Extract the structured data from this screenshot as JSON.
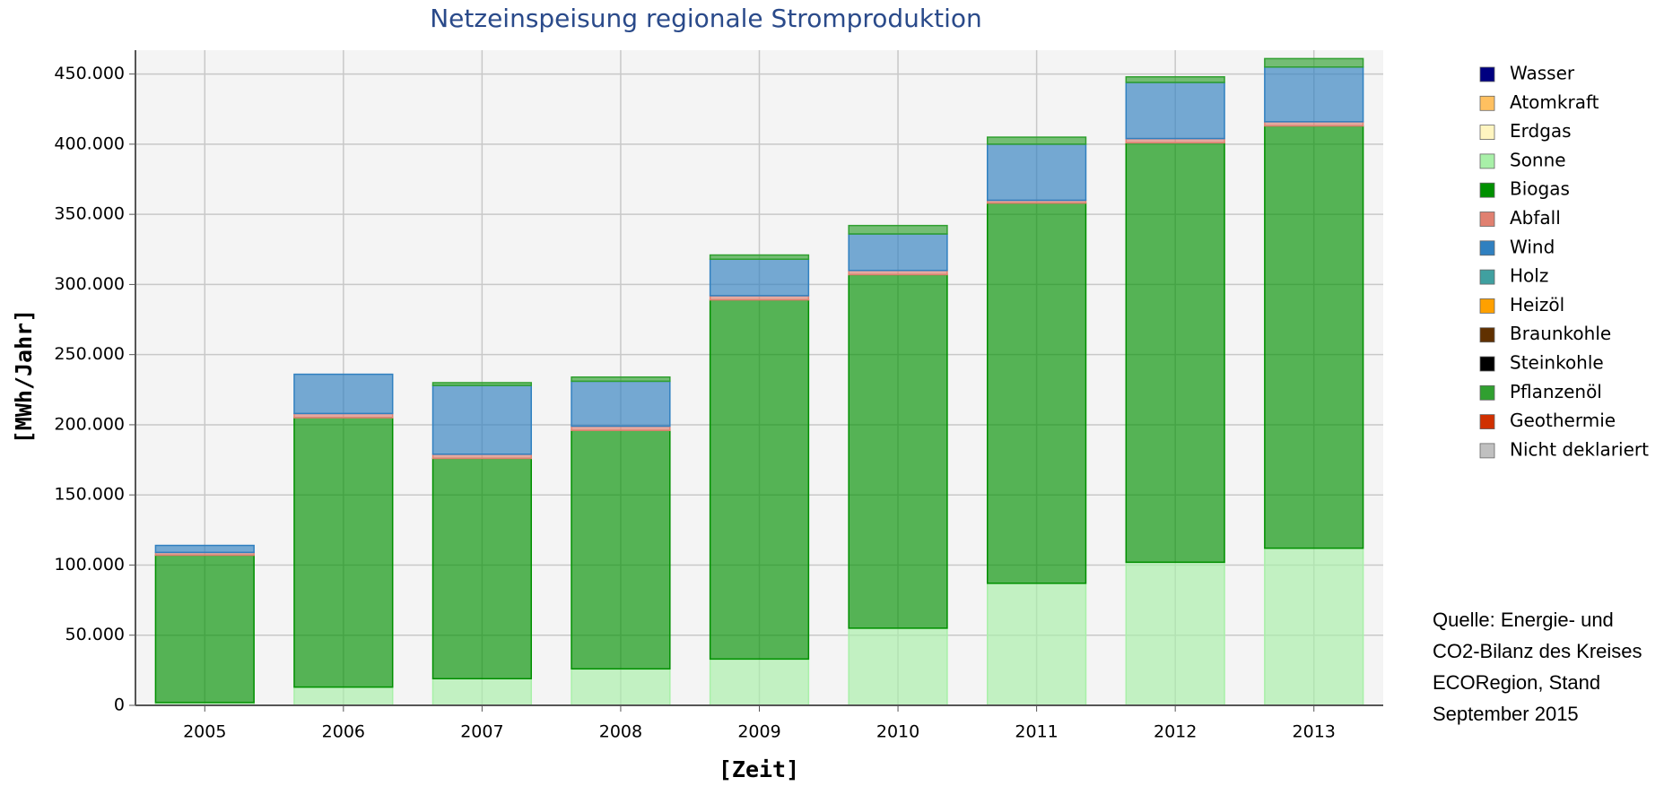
{
  "chart_data": {
    "type": "stacked_bar",
    "title": "Netzeinspeisung regionale Stromproduktion",
    "x_label": "[Zeit]",
    "y_label": "[MWh/Jahr]",
    "annotation": [
      "Quelle: Energie- und",
      "CO2-Bilanz des Kreises",
      "ECORegion, Stand",
      "September 2015"
    ],
    "categories": [
      "2005",
      "2006",
      "2007",
      "2008",
      "2009",
      "2010",
      "2011",
      "2012",
      "2013"
    ],
    "series": [
      {
        "name": "Wasser",
        "color": "#000080",
        "values": [
          0,
          0,
          0,
          0,
          0,
          0,
          0,
          0,
          0
        ]
      },
      {
        "name": "Atomkraft",
        "color": "#ffc060",
        "values": [
          0,
          0,
          0,
          0,
          0,
          0,
          0,
          0,
          0
        ]
      },
      {
        "name": "Erdgas",
        "color": "#fff5c0",
        "values": [
          0,
          0,
          0,
          0,
          0,
          0,
          0,
          0,
          0
        ]
      },
      {
        "name": "Sonne",
        "color": "#a8f0a8",
        "values": [
          2000,
          13000,
          19000,
          26000,
          33000,
          55000,
          87000,
          102000,
          112000
        ]
      },
      {
        "name": "Biogas",
        "color": "#009000",
        "values": [
          105000,
          192000,
          157000,
          170000,
          256000,
          252000,
          271000,
          299000,
          301000
        ]
      },
      {
        "name": "Abfall",
        "color": "#e08070",
        "values": [
          2000,
          3000,
          3000,
          3000,
          3000,
          3000,
          2000,
          3000,
          3000
        ]
      },
      {
        "name": "Wind",
        "color": "#3080c0",
        "values": [
          5000,
          28000,
          49000,
          32000,
          26000,
          26000,
          40000,
          40000,
          39000
        ]
      },
      {
        "name": "Holz",
        "color": "#40a0a0",
        "values": [
          0,
          0,
          0,
          0,
          0,
          0,
          0,
          0,
          0
        ]
      },
      {
        "name": "Heizöl",
        "color": "#ffa000",
        "values": [
          0,
          0,
          0,
          0,
          0,
          0,
          0,
          0,
          0
        ]
      },
      {
        "name": "Braunkohle",
        "color": "#603000",
        "values": [
          0,
          0,
          0,
          0,
          0,
          0,
          0,
          0,
          0
        ]
      },
      {
        "name": "Steinkohle",
        "color": "#000000",
        "values": [
          0,
          0,
          0,
          0,
          0,
          0,
          0,
          0,
          0
        ]
      },
      {
        "name": "Pflanzenöl",
        "color": "#30a030",
        "values": [
          0,
          0,
          2000,
          3000,
          3000,
          6000,
          5000,
          4000,
          6000
        ]
      },
      {
        "name": "Geothermie",
        "color": "#d03000",
        "values": [
          0,
          0,
          0,
          0,
          0,
          0,
          0,
          0,
          0
        ]
      },
      {
        "name": "Nicht deklariert",
        "color": "#c0c0c0",
        "values": [
          0,
          0,
          0,
          0,
          0,
          0,
          0,
          0,
          0
        ]
      }
    ],
    "ylim": [
      0,
      467000
    ],
    "yticks": [
      0,
      {
        "value": 50000,
        "label": "50.000"
      },
      {
        "value": 100000,
        "label": "100.000"
      },
      {
        "value": 150000,
        "label": "150.000"
      },
      {
        "value": 200000,
        "label": "200.000"
      },
      {
        "value": 250000,
        "label": "250.000"
      },
      {
        "value": 300000,
        "label": "300.000"
      },
      {
        "value": 350000,
        "label": "350.000"
      },
      {
        "value": 400000,
        "label": "400.000"
      },
      {
        "value": 450000,
        "label": "450.000"
      }
    ],
    "grid": true,
    "legend": "right"
  }
}
